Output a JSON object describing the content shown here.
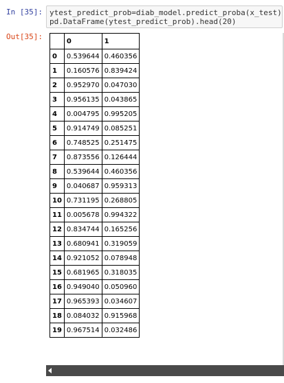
{
  "cell": {
    "in_prompt": "In [35]:",
    "out_prompt": "Out[35]:",
    "code": "ytest_predict_prob=diab_model.predict_proba(x_test)\npd.DataFrame(ytest_predict_prob).head(20)"
  },
  "table": {
    "columns": [
      "0",
      "1"
    ],
    "rows": [
      {
        "index": "0",
        "c0": "0.539644",
        "c1": "0.460356"
      },
      {
        "index": "1",
        "c0": "0.160576",
        "c1": "0.839424"
      },
      {
        "index": "2",
        "c0": "0.952970",
        "c1": "0.047030"
      },
      {
        "index": "3",
        "c0": "0.956135",
        "c1": "0.043865"
      },
      {
        "index": "4",
        "c0": "0.004795",
        "c1": "0.995205"
      },
      {
        "index": "5",
        "c0": "0.914749",
        "c1": "0.085251"
      },
      {
        "index": "6",
        "c0": "0.748525",
        "c1": "0.251475"
      },
      {
        "index": "7",
        "c0": "0.873556",
        "c1": "0.126444"
      },
      {
        "index": "8",
        "c0": "0.539644",
        "c1": "0.460356"
      },
      {
        "index": "9",
        "c0": "0.040687",
        "c1": "0.959313"
      },
      {
        "index": "10",
        "c0": "0.731195",
        "c1": "0.268805"
      },
      {
        "index": "11",
        "c0": "0.005678",
        "c1": "0.994322"
      },
      {
        "index": "12",
        "c0": "0.834744",
        "c1": "0.165256"
      },
      {
        "index": "13",
        "c0": "0.680941",
        "c1": "0.319059"
      },
      {
        "index": "14",
        "c0": "0.921052",
        "c1": "0.078948"
      },
      {
        "index": "15",
        "c0": "0.681965",
        "c1": "0.318035"
      },
      {
        "index": "16",
        "c0": "0.949040",
        "c1": "0.050960"
      },
      {
        "index": "17",
        "c0": "0.965393",
        "c1": "0.034607"
      },
      {
        "index": "18",
        "c0": "0.084032",
        "c1": "0.915968"
      },
      {
        "index": "19",
        "c0": "0.967514",
        "c1": "0.032486"
      }
    ]
  },
  "scrollbar": {
    "arrow_icon": "triangle-left-icon"
  }
}
